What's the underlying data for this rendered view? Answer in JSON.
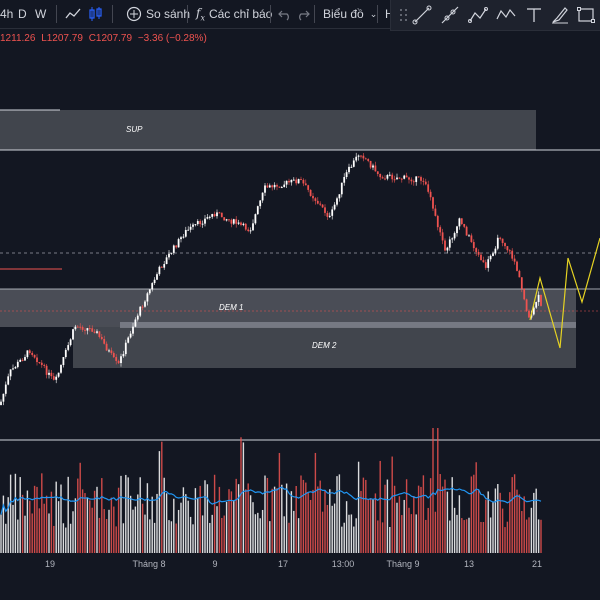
{
  "toolbar": {
    "interval_partial": "4h",
    "interval_d": "D",
    "interval_w": "W",
    "compare_label": "So sánh",
    "indicators_label": "Các chỉ báo",
    "charts_label": "Biểu đồ",
    "partial_h": "H"
  },
  "ohlc": {
    "high": "1211.26",
    "low": "L1207.79",
    "close": "C1207.79",
    "change": "−3.36 (−0.28%)"
  },
  "zones": {
    "sup": "SUP",
    "dem1": "DEM 1",
    "dem2": "DEM 2"
  },
  "time_axis": [
    "19",
    "Tháng 8",
    "9",
    "17",
    "13:00",
    "Tháng 9",
    "13",
    "21"
  ],
  "colors": {
    "background": "#131722",
    "up_candle": "#ffffff",
    "down_candle": "#ef5350",
    "volume_ma": "#2196f3",
    "projection": "#e6d323",
    "zone_fill": "#4a4d55"
  },
  "icons": [
    "candles-icon",
    "line-chart-icon",
    "compare-plus-icon",
    "indicators-fx-icon",
    "undo-icon",
    "chevron-down-icon",
    "drag-handle-icon",
    "trendline-icon",
    "ray-icon",
    "path-icon",
    "polyline-icon",
    "text-icon",
    "brush-icon",
    "rectangle-icon"
  ]
}
